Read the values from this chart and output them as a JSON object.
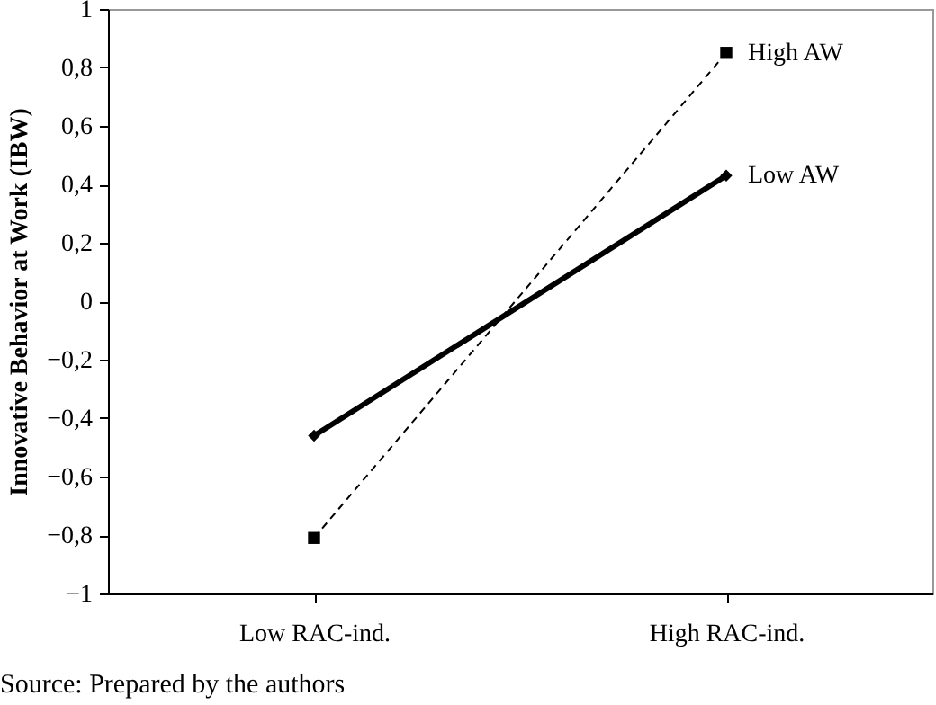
{
  "chart_data": {
    "type": "line",
    "ylabel": "Innovative Behavior at Work (IBW)",
    "categories": [
      "Low RAC-ind.",
      "High RAC-ind."
    ],
    "series": [
      {
        "name": "High AW",
        "color": "#000000",
        "values": [
          -0.81,
          0.85
        ],
        "marker": "square",
        "line_style": "dashed"
      },
      {
        "name": "Low AW",
        "color": "#000000",
        "values": [
          -0.46,
          0.43
        ],
        "marker": "diamond",
        "line_style": "solid"
      }
    ],
    "ylim": [
      -1,
      1
    ],
    "yticks": [
      {
        "value": -1,
        "label": "−1"
      },
      {
        "value": -0.8,
        "label": "−0,8"
      },
      {
        "value": -0.6,
        "label": "−0,6"
      },
      {
        "value": -0.4,
        "label": "−0,4"
      },
      {
        "value": -0.2,
        "label": "−0,2"
      },
      0,
      {
        "value": 0.2,
        "label": "0,2"
      },
      {
        "value": 0.4,
        "label": "0,4"
      },
      {
        "value": 0.6,
        "label": "0,6"
      },
      {
        "value": 0.8,
        "label": "0,8"
      },
      1
    ],
    "grid": false,
    "legend": false,
    "annotations": [
      "Source: Prepared by the authors"
    ]
  }
}
